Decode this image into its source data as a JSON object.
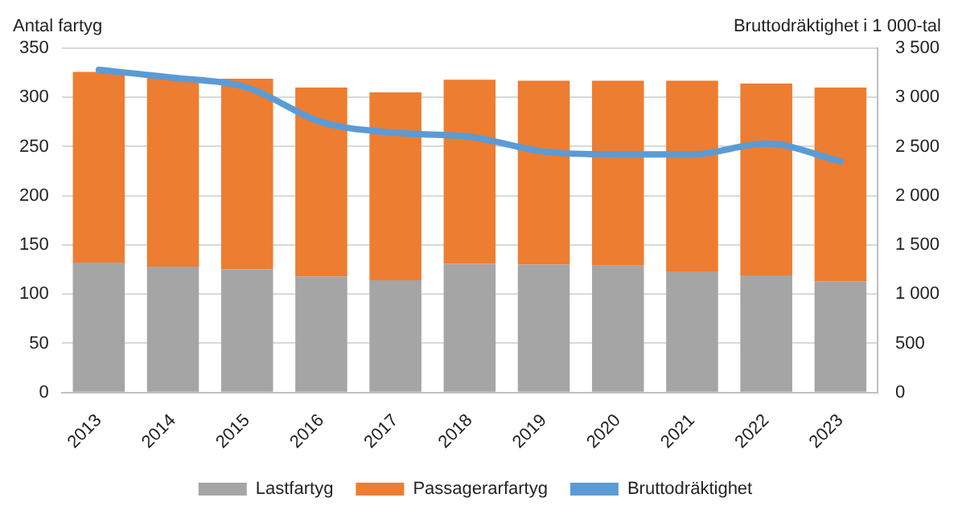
{
  "chart_data": {
    "type": "bar",
    "stacked": true,
    "ylabel": "Antal fartyg",
    "y2label": "Bruttodräktighet i 1 000-tal",
    "categories": [
      "2013",
      "2014",
      "2015",
      "2016",
      "2017",
      "2018",
      "2019",
      "2020",
      "2021",
      "2022",
      "2023"
    ],
    "series": [
      {
        "name": "Lastfartyg",
        "color": "#a5a5a5",
        "values": [
          132,
          128,
          125,
          118,
          114,
          131,
          130,
          129,
          123,
          119,
          113
        ]
      },
      {
        "name": "Passagerarfartyg",
        "color": "#ed7d31",
        "values": [
          194,
          192,
          194,
          192,
          191,
          187,
          187,
          188,
          194,
          195,
          197
        ]
      },
      {
        "name": "Bruttodräktighet",
        "type": "line",
        "axis": "y2",
        "color": "#5b9bd5",
        "values": [
          3280,
          3200,
          3100,
          2750,
          2640,
          2600,
          2450,
          2420,
          2420,
          2530,
          2350
        ]
      }
    ],
    "ylim": [
      0,
      350
    ],
    "yticks": [
      0,
      50,
      100,
      150,
      200,
      250,
      300,
      350
    ],
    "y2lim": [
      0,
      3500
    ],
    "y2ticks": [
      0,
      {
        "value": 500,
        "label": "500"
      },
      {
        "value": 1000,
        "label": "1 000"
      },
      {
        "value": 1500,
        "label": "1 500"
      },
      {
        "value": 2000,
        "label": "2 000"
      },
      {
        "value": 2500,
        "label": "2 500"
      },
      {
        "value": 3000,
        "label": "3 000"
      },
      {
        "value": 3500,
        "label": "3 500"
      }
    ],
    "grid": "y",
    "legend": "bottom",
    "marker": "none"
  }
}
